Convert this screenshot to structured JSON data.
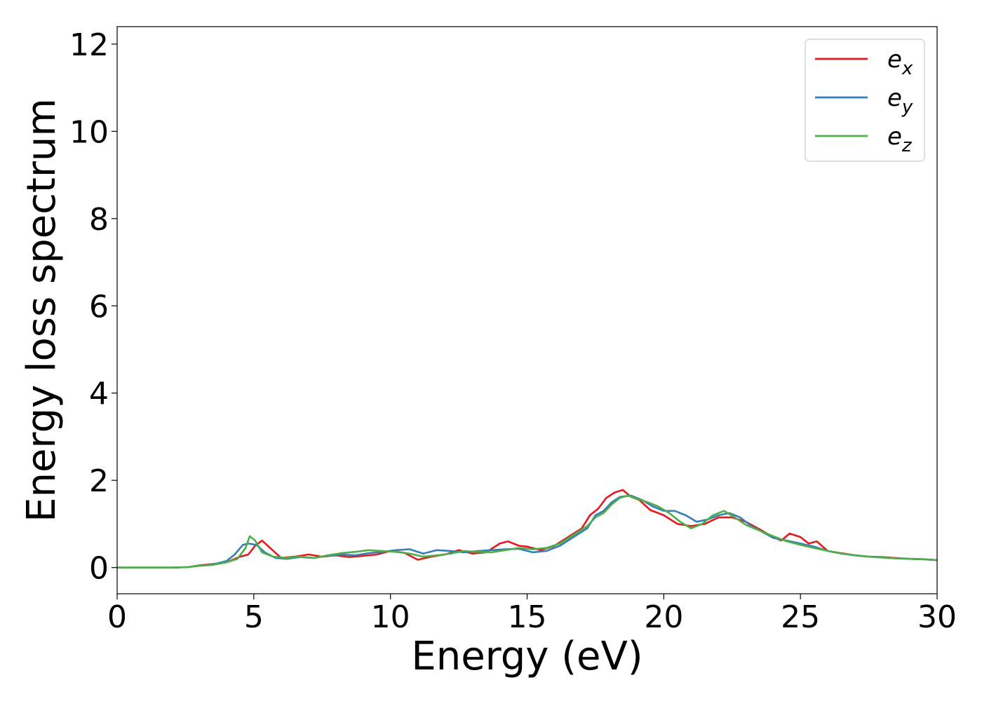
{
  "chart_data": {
    "type": "line",
    "title": "",
    "xlabel": "Energy (eV)",
    "ylabel": "Energy loss spectrum",
    "xlim": [
      0,
      30
    ],
    "ylim": [
      -0.6,
      12.4
    ],
    "xticks": [
      0,
      5,
      10,
      15,
      20,
      25,
      30
    ],
    "yticks": [
      0,
      2,
      4,
      6,
      8,
      10,
      12
    ],
    "grid": false,
    "legend_position": "top-right",
    "series": [
      {
        "name": "e_x",
        "label_base": "e",
        "label_sub": "x",
        "color": "#e41a1c",
        "x": [
          0,
          1,
          2,
          2.6,
          3.0,
          3.5,
          4.0,
          4.5,
          4.8,
          5.05,
          5.3,
          5.6,
          6.0,
          6.5,
          7.0,
          7.5,
          8.0,
          8.5,
          9.0,
          9.5,
          10.0,
          10.5,
          11.0,
          11.5,
          12.0,
          12.5,
          13.0,
          13.5,
          14.0,
          14.3,
          14.7,
          15.0,
          15.5,
          16.0,
          16.5,
          17.0,
          17.3,
          17.6,
          17.9,
          18.2,
          18.5,
          18.8,
          19.1,
          19.5,
          20.0,
          20.5,
          21.0,
          21.5,
          22.0,
          22.5,
          23.0,
          23.5,
          24.0,
          24.3,
          24.6,
          25.0,
          25.3,
          25.6,
          26.0,
          26.5,
          27.0,
          27.5,
          28.0,
          28.5,
          29.0,
          29.5,
          30.0
        ],
        "y": [
          0.0,
          0.0,
          0.0,
          0.01,
          0.05,
          0.08,
          0.12,
          0.25,
          0.3,
          0.5,
          0.62,
          0.45,
          0.22,
          0.25,
          0.3,
          0.25,
          0.28,
          0.24,
          0.27,
          0.3,
          0.38,
          0.34,
          0.18,
          0.25,
          0.3,
          0.4,
          0.32,
          0.35,
          0.55,
          0.6,
          0.5,
          0.48,
          0.4,
          0.5,
          0.7,
          0.9,
          1.2,
          1.35,
          1.6,
          1.72,
          1.78,
          1.62,
          1.55,
          1.32,
          1.2,
          1.0,
          0.95,
          1.0,
          1.15,
          1.15,
          1.05,
          0.88,
          0.7,
          0.62,
          0.78,
          0.7,
          0.55,
          0.6,
          0.38,
          0.33,
          0.28,
          0.25,
          0.24,
          0.22,
          0.2,
          0.19,
          0.17
        ]
      },
      {
        "name": "e_y",
        "label_base": "e",
        "label_sub": "y",
        "color": "#377eb8",
        "x": [
          0,
          1,
          2,
          2.6,
          3.0,
          3.5,
          4.0,
          4.3,
          4.6,
          4.8,
          5.1,
          5.4,
          5.8,
          6.2,
          6.7,
          7.2,
          7.7,
          8.2,
          8.7,
          9.2,
          9.7,
          10.2,
          10.7,
          11.2,
          11.7,
          12.2,
          12.7,
          13.2,
          13.7,
          14.2,
          14.7,
          15.2,
          15.7,
          16.2,
          16.7,
          17.2,
          17.5,
          17.8,
          18.1,
          18.4,
          18.8,
          19.2,
          19.6,
          20.0,
          20.4,
          20.8,
          21.2,
          21.6,
          22.0,
          22.4,
          22.8,
          23.2,
          23.6,
          24.0,
          24.5,
          25.0,
          25.5,
          26.0,
          26.5,
          27.0,
          27.5,
          28.0,
          28.5,
          29.0,
          29.5,
          30.0
        ],
        "y": [
          0.0,
          0.0,
          0.0,
          0.01,
          0.04,
          0.07,
          0.15,
          0.3,
          0.52,
          0.55,
          0.52,
          0.35,
          0.22,
          0.2,
          0.24,
          0.22,
          0.27,
          0.3,
          0.28,
          0.33,
          0.36,
          0.4,
          0.42,
          0.32,
          0.4,
          0.38,
          0.35,
          0.38,
          0.4,
          0.42,
          0.43,
          0.35,
          0.38,
          0.5,
          0.7,
          0.9,
          1.2,
          1.3,
          1.5,
          1.62,
          1.65,
          1.55,
          1.4,
          1.3,
          1.3,
          1.2,
          1.05,
          1.1,
          1.2,
          1.25,
          1.15,
          0.95,
          0.82,
          0.68,
          0.62,
          0.55,
          0.48,
          0.38,
          0.32,
          0.28,
          0.25,
          0.23,
          0.21,
          0.2,
          0.19,
          0.17
        ]
      },
      {
        "name": "e_z",
        "label_base": "e",
        "label_sub": "z",
        "color": "#4daf4a",
        "x": [
          0,
          1,
          2,
          2.6,
          3.0,
          3.5,
          4.0,
          4.4,
          4.7,
          4.85,
          5.05,
          5.3,
          5.7,
          6.2,
          6.7,
          7.2,
          7.7,
          8.2,
          8.7,
          9.2,
          9.7,
          10.2,
          10.7,
          11.2,
          11.7,
          12.2,
          12.7,
          13.2,
          13.7,
          14.2,
          14.7,
          15.2,
          15.7,
          16.2,
          16.7,
          17.2,
          17.5,
          17.8,
          18.1,
          18.4,
          18.7,
          19.0,
          19.4,
          19.8,
          20.2,
          20.6,
          21.0,
          21.4,
          21.8,
          22.2,
          22.6,
          23.0,
          23.5,
          24.0,
          24.5,
          25.0,
          25.5,
          26.0,
          26.5,
          27.0,
          27.5,
          28.0,
          28.5,
          29.0,
          29.5,
          30.0
        ],
        "y": [
          0.0,
          0.0,
          0.0,
          0.01,
          0.04,
          0.06,
          0.12,
          0.2,
          0.45,
          0.72,
          0.62,
          0.35,
          0.25,
          0.22,
          0.25,
          0.22,
          0.28,
          0.33,
          0.36,
          0.4,
          0.38,
          0.36,
          0.32,
          0.25,
          0.28,
          0.32,
          0.38,
          0.36,
          0.35,
          0.4,
          0.45,
          0.42,
          0.45,
          0.55,
          0.75,
          0.95,
          1.15,
          1.25,
          1.45,
          1.6,
          1.65,
          1.58,
          1.5,
          1.4,
          1.25,
          1.05,
          0.9,
          1.0,
          1.2,
          1.3,
          1.15,
          0.98,
          0.85,
          0.72,
          0.6,
          0.52,
          0.45,
          0.38,
          0.32,
          0.28,
          0.25,
          0.23,
          0.21,
          0.2,
          0.19,
          0.17
        ]
      }
    ]
  }
}
